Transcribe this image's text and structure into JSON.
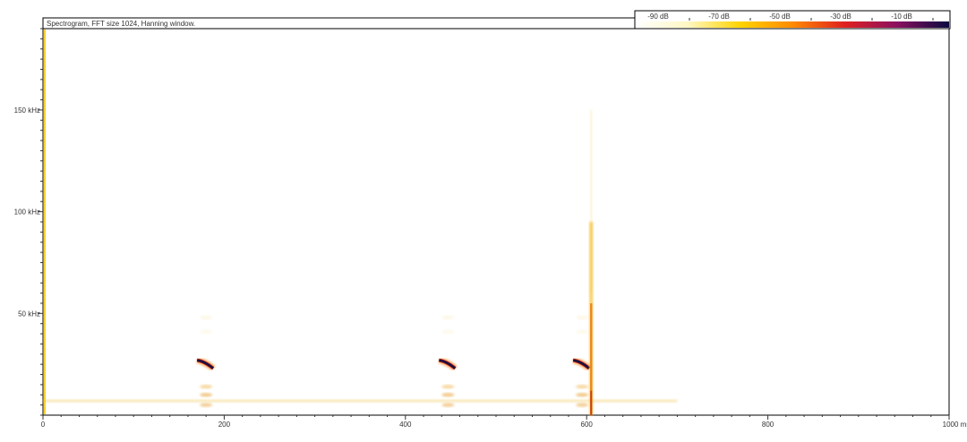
{
  "chart_data": {
    "type": "heatmap",
    "title": "Spectrogram, FFT size 1024, Hanning window.",
    "xlabel": "",
    "ylabel": "",
    "x_unit": "ms",
    "xlim": [
      0,
      1000
    ],
    "ylim": [
      0,
      190
    ],
    "x_ticks": [
      {
        "value": 0,
        "label": "0"
      },
      {
        "value": 200,
        "label": "200"
      },
      {
        "value": 400,
        "label": "400"
      },
      {
        "value": 600,
        "label": "600"
      },
      {
        "value": 800,
        "label": "800"
      },
      {
        "value": 1000,
        "label": "1000 ms"
      }
    ],
    "y_ticks": [
      {
        "value": 50,
        "label": "50 kHz"
      },
      {
        "value": 100,
        "label": "100 kHz"
      },
      {
        "value": 150,
        "label": "150 kHz"
      }
    ],
    "colorbar": {
      "labels": [
        "-90 dB",
        "-70 dB",
        "-50 dB",
        "-30 dB",
        "-10 dB"
      ],
      "colors": [
        "#ffffff",
        "#fff7c2",
        "#ffd400",
        "#ff8a00",
        "#e02020",
        "#8a1060",
        "#0a0a40"
      ]
    },
    "events": [
      {
        "time_ms": 178,
        "freq_start_khz": 27,
        "freq_end_khz": 23
      },
      {
        "time_ms": 445,
        "freq_start_khz": 27,
        "freq_end_khz": 23
      },
      {
        "time_ms": 593,
        "freq_start_khz": 27,
        "freq_end_khz": 23
      }
    ],
    "broadband_click": {
      "time_ms": 605,
      "freq_max_khz": 150
    },
    "background_band_khz": 7,
    "grid": false,
    "legend_placement": "top-right"
  }
}
